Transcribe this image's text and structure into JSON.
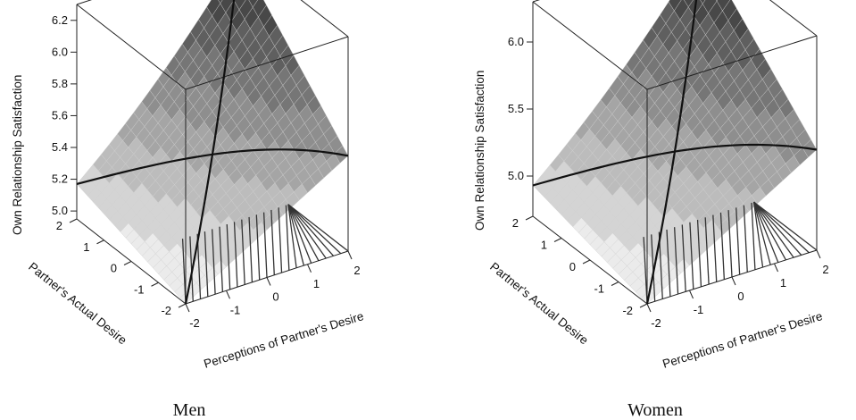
{
  "chart_data": [
    {
      "type": "surface3d",
      "caption": "Men",
      "zlabel": "Own Relationship Satisfaction",
      "ylabel": "Partner's Actual Desire",
      "xlabel": "Perceptions of Partner's Desire",
      "xticks": [
        "-2",
        "-1",
        "0",
        "1",
        "2"
      ],
      "yticks": [
        "-2",
        "-1",
        "0",
        "1",
        "2"
      ],
      "zticks": [
        "5.0",
        "5.2",
        "5.4",
        "5.6",
        "5.8",
        "6.0",
        "6.2"
      ],
      "zlim": [
        4.95,
        6.3
      ],
      "corners": {
        "x-2_y-2": 4.95,
        "x2_y-2": 5.55,
        "x-2_y2": 5.17,
        "x2_y2": 6.28
      },
      "grid": 20
    },
    {
      "type": "surface3d",
      "caption": "Women",
      "zlabel": "Own Relationship Satisfaction",
      "ylabel": "Partner's Actual Desire",
      "xlabel": "Perceptions of Partner's Desire",
      "xticks": [
        "-2",
        "-1",
        "0",
        "1",
        "2"
      ],
      "yticks": [
        "-2",
        "-1",
        "0",
        "1",
        "2"
      ],
      "zticks": [
        "5.0",
        "5.5",
        "6.0"
      ],
      "zlim": [
        4.7,
        6.3
      ],
      "corners": {
        "x-2_y-2": 4.7,
        "x2_y-2": 5.45,
        "x-2_y2": 4.93,
        "x2_y2": 6.3
      },
      "grid": 20
    }
  ]
}
